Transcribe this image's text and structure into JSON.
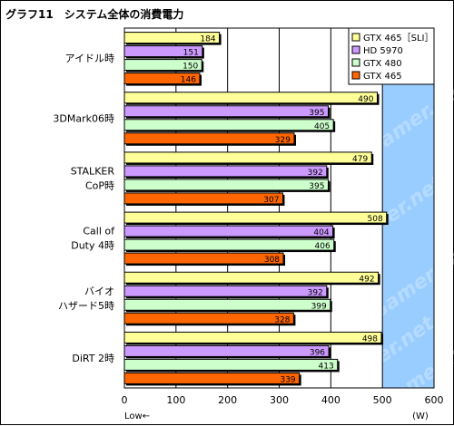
{
  "chart_data": {
    "type": "bar",
    "orientation": "horizontal",
    "title": "グラフ11　システム全体の消費電力",
    "categories": [
      [
        "アイドル時"
      ],
      [
        "3DMark06時"
      ],
      [
        "STALKER",
        "CoP時"
      ],
      [
        "Call of",
        "Duty 4時"
      ],
      [
        "バイオ",
        "ハザード5時"
      ],
      [
        "DiRT 2時"
      ]
    ],
    "series": [
      {
        "name": "GTX 465［SLI］",
        "color": "#ffff99",
        "values": [
          184,
          490,
          479,
          508,
          492,
          498
        ]
      },
      {
        "name": "HD 5970",
        "color": "#cc99ff",
        "values": [
          151,
          395,
          392,
          404,
          392,
          396
        ]
      },
      {
        "name": "GTX 480",
        "color": "#ccffcc",
        "values": [
          150,
          405,
          395,
          406,
          399,
          413
        ]
      },
      {
        "name": "GTX 465",
        "color": "#ff6600",
        "values": [
          146,
          329,
          307,
          308,
          328,
          339
        ]
      }
    ],
    "xlim": [
      0,
      600
    ],
    "xticks": [
      0,
      100,
      200,
      300,
      400,
      500,
      600
    ],
    "xlabel_left": "Low←",
    "unit": "(W)",
    "grid": true,
    "legend_position": "top-right",
    "background_left": "#ffffff",
    "background_right": "#99ccff",
    "watermark": "4Gamer.net"
  }
}
